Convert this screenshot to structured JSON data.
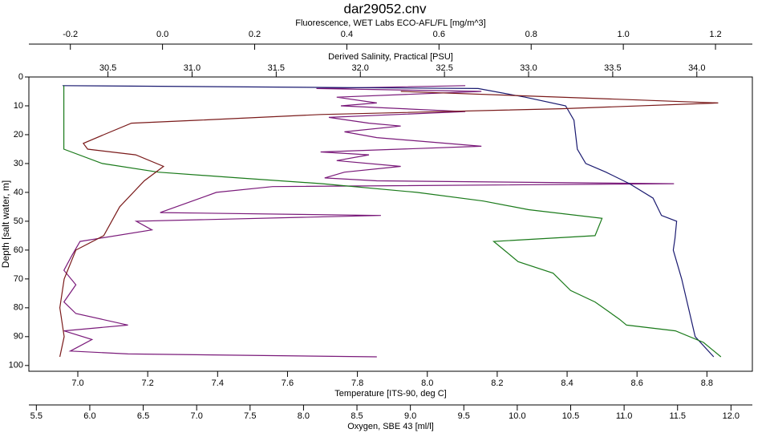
{
  "chart_data": {
    "type": "line",
    "title": "dar29052.cnv",
    "y_label": "Depth [salt water, m]",
    "ylim": [
      0,
      102
    ],
    "yticks": [
      0,
      10,
      20,
      30,
      40,
      50,
      60,
      70,
      80,
      90,
      100
    ],
    "x_axes": [
      {
        "label": "Fluorescence, WET Labs ECO-AFL/FL [mg/m^3]",
        "color": "#7a1a7a",
        "xlim": [
          -0.29,
          1.28
        ],
        "xticks": [
          -0.2,
          {
            "value": 0,
            "label": "0.0"
          },
          0.2,
          0.4,
          0.6,
          0.8,
          {
            "value": 1,
            "label": "1.0"
          },
          1.2
        ]
      },
      {
        "label": "Derived Salinity, Practical [PSU]",
        "color": "#1a1a70",
        "xlim": [
          30.03,
          34.33
        ],
        "xticks": [
          30.5,
          {
            "value": 31,
            "label": "31.0"
          },
          31.5,
          {
            "value": 32,
            "label": "32.0"
          },
          32.5,
          {
            "value": 33,
            "label": "33.0"
          },
          33.5,
          {
            "value": 34,
            "label": "34.0"
          }
        ]
      },
      {
        "label": "Temperature [ITS-90, deg C]",
        "color": "#1a7a1a",
        "xlim": [
          6.86,
          8.93
        ],
        "xticks": [
          {
            "value": 7,
            "label": "7.0"
          },
          7.2,
          7.4,
          7.6,
          7.8,
          {
            "value": 8,
            "label": "8.0"
          },
          8.2,
          8.4,
          8.6,
          8.8
        ]
      },
      {
        "label": "Oxygen, SBE 43 [ml/l]",
        "color": "#7a1a1a",
        "xlim": [
          5.43,
          12.2
        ],
        "xticks": [
          5.5,
          {
            "value": 6,
            "label": "6.0"
          },
          6.5,
          {
            "value": 7,
            "label": "7.0"
          },
          7.5,
          {
            "value": 8,
            "label": "8.0"
          },
          8.5,
          {
            "value": 9,
            "label": "9.0"
          },
          9.5,
          {
            "value": 10,
            "label": "10.0"
          },
          10.5,
          {
            "value": 11,
            "label": "11.0"
          },
          11.5,
          {
            "value": 12,
            "label": "12.0"
          }
        ]
      }
    ],
    "series": [
      {
        "x_axis": 0,
        "color": "#7a1a7a",
        "depth": [
          3,
          4,
          5,
          7,
          9,
          10,
          12,
          14,
          16,
          17,
          19,
          21,
          24,
          26,
          27,
          29,
          31,
          33,
          35,
          36,
          37,
          38,
          40,
          47,
          48,
          50,
          53,
          57,
          62,
          67,
          72,
          78,
          82,
          86,
          88,
          91,
          95,
          96,
          97
        ],
        "values": [
          0.657,
          0.334,
          0.692,
          0.378,
          0.465,
          0.387,
          0.657,
          0.361,
          0.448,
          0.517,
          0.395,
          0.465,
          0.692,
          0.343,
          0.448,
          0.378,
          0.517,
          0.395,
          0.352,
          0.465,
          1.11,
          0.239,
          0.117,
          -0.005,
          0.474,
          -0.057,
          -0.023,
          -0.179,
          -0.197,
          -0.214,
          -0.188,
          -0.214,
          -0.188,
          -0.075,
          -0.214,
          -0.153,
          -0.2,
          -0.075,
          0.465
        ]
      },
      {
        "x_axis": 1,
        "color": "#1a1a70",
        "depth": [
          3,
          4,
          7,
          10,
          15,
          25,
          30,
          33,
          37,
          42,
          48,
          50,
          56,
          60,
          70,
          80,
          90,
          97
        ],
        "values": [
          30.23,
          32.7,
          32.98,
          33.22,
          33.27,
          33.29,
          33.34,
          33.46,
          33.6,
          33.74,
          33.79,
          33.88,
          33.87,
          33.86,
          33.91,
          33.95,
          33.99,
          34.1
        ]
      },
      {
        "x_axis": 2,
        "color": "#1a7a1a",
        "depth": [
          3,
          25,
          30,
          33,
          35,
          37,
          40,
          43,
          46,
          49,
          55,
          57,
          60,
          64,
          68,
          74,
          78,
          84,
          86,
          88,
          92,
          97
        ],
        "values": [
          6.96,
          6.96,
          7.07,
          7.23,
          7.46,
          7.7,
          7.97,
          8.16,
          8.29,
          8.5,
          8.48,
          8.19,
          8.22,
          8.26,
          8.36,
          8.41,
          8.48,
          8.55,
          8.57,
          8.71,
          8.79,
          8.84
        ]
      },
      {
        "x_axis": 3,
        "color": "#7a1a1a",
        "depth": [
          5,
          8,
          9,
          11,
          13,
          15,
          16,
          20,
          23,
          25,
          27,
          31,
          36,
          45,
          55,
          60,
          70,
          80,
          90,
          97
        ],
        "values": [
          8.91,
          11.16,
          11.88,
          10.41,
          8.16,
          7.0,
          6.39,
          6.13,
          5.94,
          5.98,
          6.43,
          6.69,
          6.51,
          6.28,
          6.13,
          5.87,
          5.76,
          5.72,
          5.76,
          5.72
        ]
      }
    ]
  }
}
